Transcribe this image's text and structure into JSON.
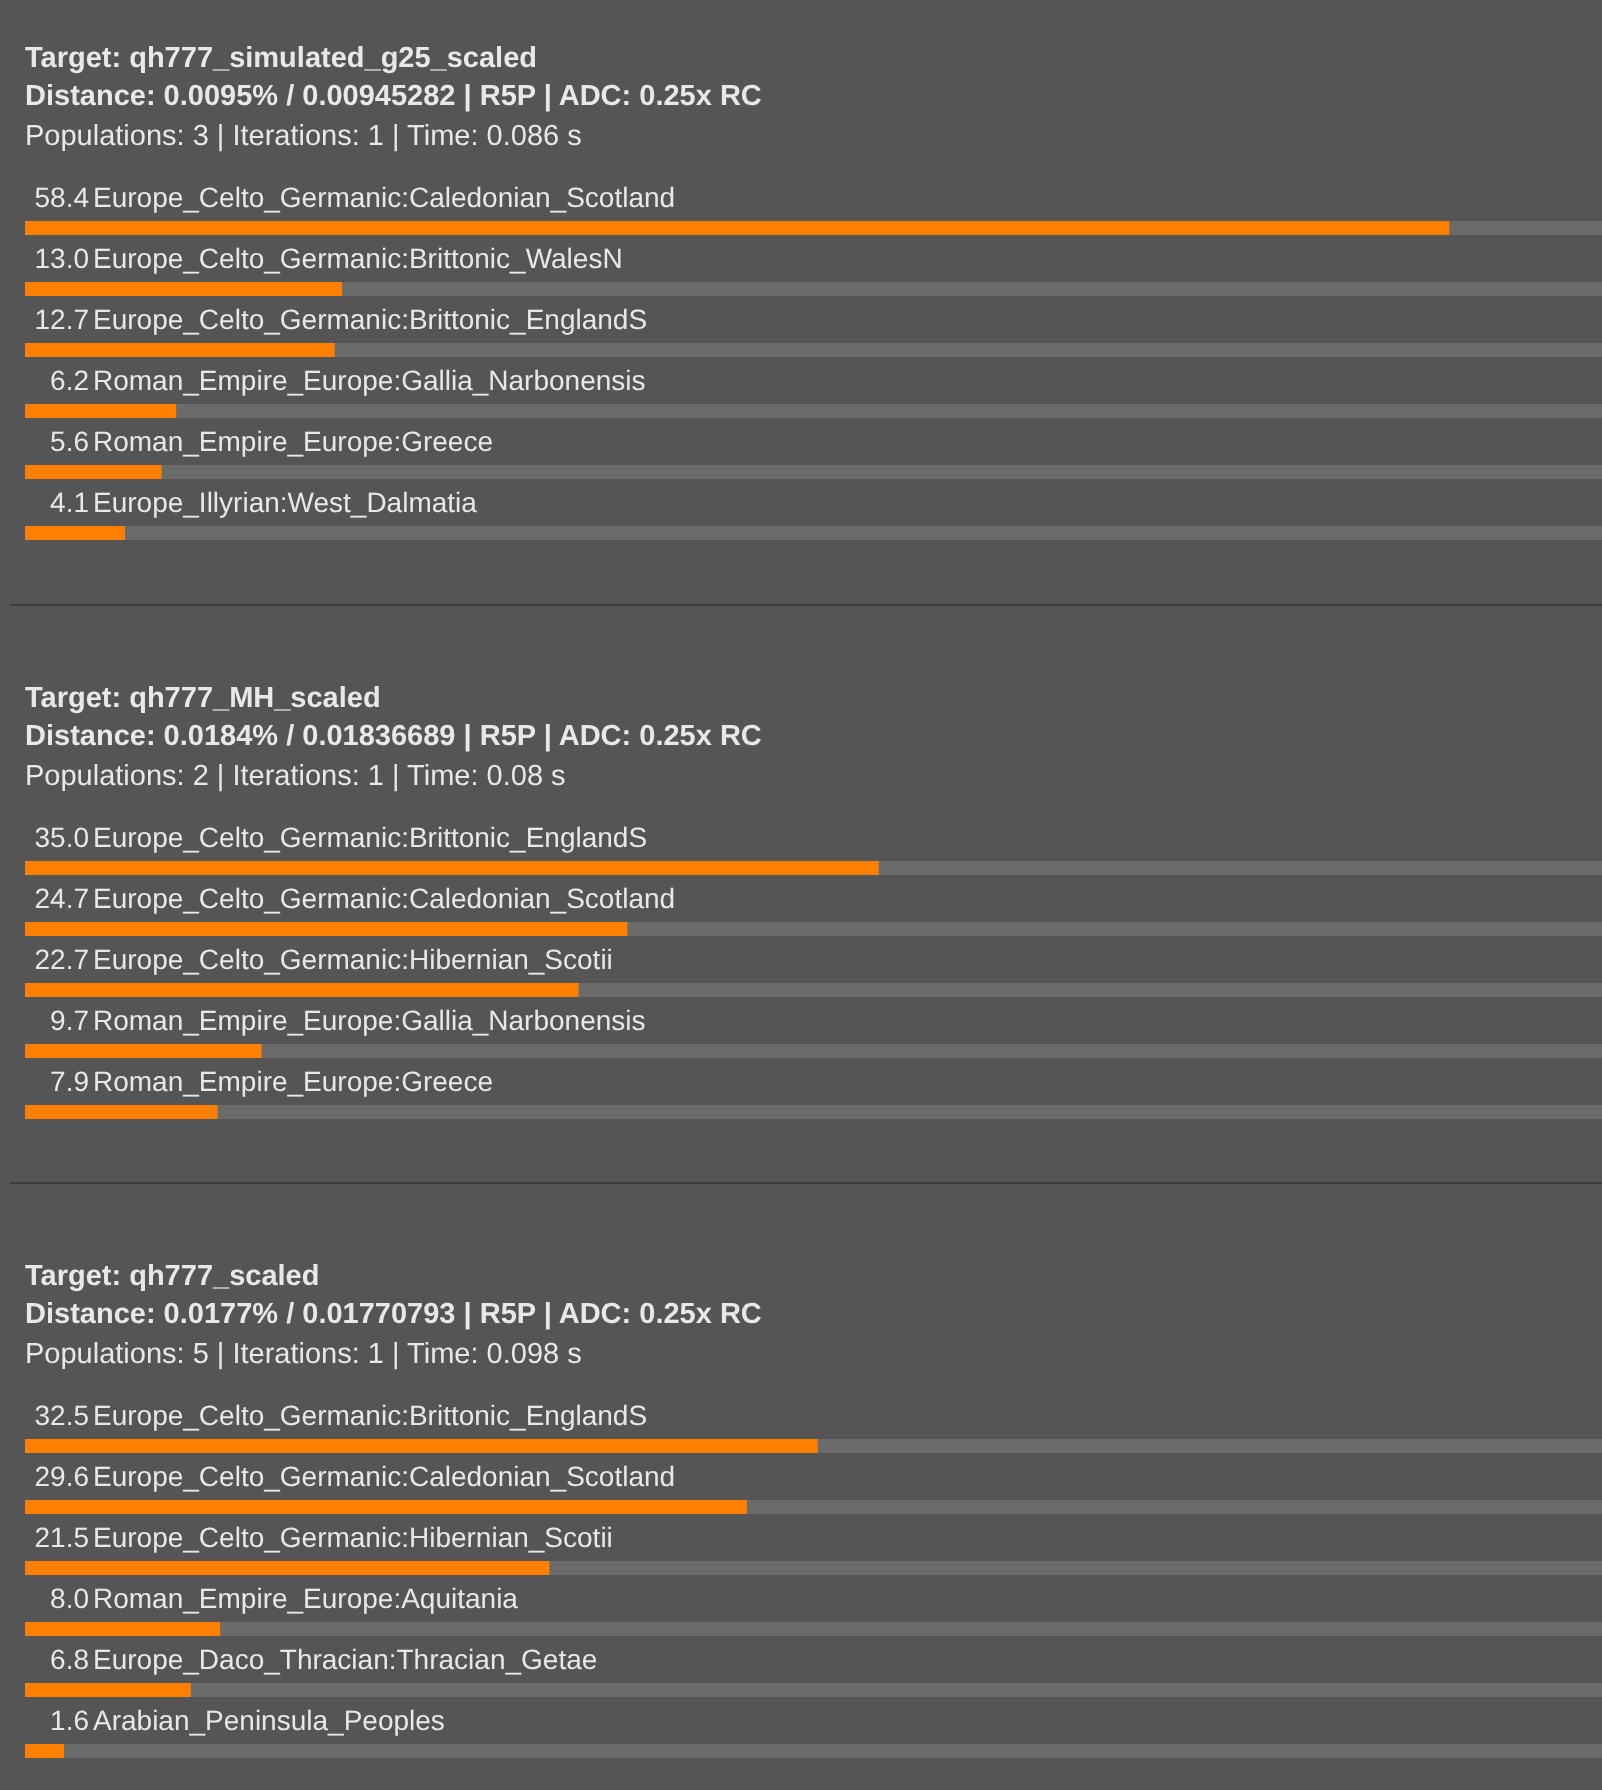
{
  "chart_data": [
    {
      "type": "bar",
      "orientation": "horizontal",
      "title": "Target: qh777_simulated_g25_scaled",
      "subtitle": "Distance: 0.0095% / 0.00945282 | R5P | ADC: 0.25x RC",
      "annotations": [
        "Populations: 3 | Iterations: 1 | Time: 0.086 s"
      ],
      "categories": [
        "Europe_Celto_Germanic:Caledonian_Scotland",
        "Europe_Celto_Germanic:Brittonic_WalesN",
        "Europe_Celto_Germanic:Brittonic_EnglandS",
        "Roman_Empire_Europe:Gallia_Narbonensis",
        "Roman_Empire_Europe:Greece",
        "Europe_Illyrian:West_Dalmatia"
      ],
      "values": [
        58.4,
        13.0,
        12.7,
        6.2,
        5.6,
        4.1
      ],
      "value_labels": [
        "58.4",
        "13.0",
        "12.7",
        "6.2",
        "5.6",
        "4.1"
      ],
      "color": "#ff8000",
      "xlim": [
        0,
        64.7
      ]
    },
    {
      "type": "bar",
      "orientation": "horizontal",
      "title": "Target: qh777_MH_scaled",
      "subtitle": "Distance: 0.0184% / 0.01836689 | R5P | ADC: 0.25x RC",
      "annotations": [
        "Populations: 2 | Iterations: 1 | Time: 0.08 s"
      ],
      "categories": [
        "Europe_Celto_Germanic:Brittonic_EnglandS",
        "Europe_Celto_Germanic:Caledonian_Scotland",
        "Europe_Celto_Germanic:Hibernian_Scotii",
        "Roman_Empire_Europe:Gallia_Narbonensis",
        "Roman_Empire_Europe:Greece"
      ],
      "values": [
        35.0,
        24.7,
        22.7,
        9.7,
        7.9
      ],
      "value_labels": [
        "35.0",
        "24.7",
        "22.7",
        "9.7",
        "7.9"
      ],
      "color": "#ff8000",
      "xlim": [
        0,
        64.7
      ]
    },
    {
      "type": "bar",
      "orientation": "horizontal",
      "title": "Target: qh777_scaled",
      "subtitle": "Distance: 0.0177% / 0.01770793 | R5P | ADC: 0.25x RC",
      "annotations": [
        "Populations: 5 | Iterations: 1 | Time: 0.098 s"
      ],
      "categories": [
        "Europe_Celto_Germanic:Brittonic_EnglandS",
        "Europe_Celto_Germanic:Caledonian_Scotland",
        "Europe_Celto_Germanic:Hibernian_Scotii",
        "Roman_Empire_Europe:Aquitania",
        "Europe_Daco_Thracian:Thracian_Getae",
        "Arabian_Peninsula_Peoples"
      ],
      "values": [
        32.5,
        29.6,
        21.5,
        8.0,
        6.8,
        1.6
      ],
      "value_labels": [
        "32.5",
        "29.6",
        "21.5",
        "8.0",
        "6.8",
        "1.6"
      ],
      "color": "#ff8000",
      "xlim": [
        0,
        64.7
      ]
    }
  ]
}
